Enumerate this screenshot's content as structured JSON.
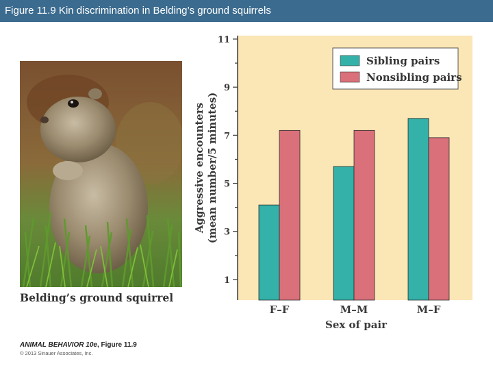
{
  "slide": {
    "title": "Figure 11.9  Kin discrimination in Belding’s ground squirrels"
  },
  "photo": {
    "caption": "Belding’s ground squirrel"
  },
  "credit": {
    "book": "ANIMAL BEHAVIOR 10e",
    "figure": ", Figure 11.9",
    "copyright": "© 2013 Sinauer Associates, Inc."
  },
  "colors": {
    "title_bar": "#3b6b8e",
    "plot_background": "#fbe6b5",
    "sibling": "#34b1a8",
    "nonsibling": "#d9707a"
  },
  "chart_data": {
    "type": "bar",
    "title": "",
    "xlabel": "Sex of pair",
    "ylabel": "Aggressive encounters",
    "ylabel_sub": "(mean number/5 minutes)",
    "categories": [
      "F–F",
      "M–M",
      "M–F"
    ],
    "series": [
      {
        "name": "Sibling pairs",
        "color": "#34b1a8",
        "values": [
          4.1,
          5.7,
          7.7
        ]
      },
      {
        "name": "Nonsibling pairs",
        "color": "#d9707a",
        "values": [
          7.2,
          7.2,
          6.9
        ]
      }
    ],
    "ylim": [
      0,
      11
    ],
    "yticks": [
      1,
      3,
      5,
      7,
      9,
      11
    ],
    "grid": false,
    "legend_position": "top-right"
  }
}
